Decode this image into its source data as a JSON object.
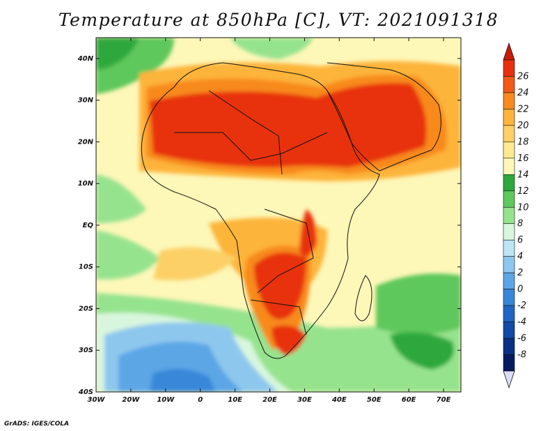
{
  "title": "Temperature at 850hPa [C], VT: 2021091318",
  "credit": "GrADS: IGES/COLA",
  "map": {
    "lat_ticks": [
      "40N",
      "30N",
      "20N",
      "10N",
      "EQ",
      "10S",
      "20S",
      "30S",
      "40S"
    ],
    "lon_ticks": [
      "30W",
      "20W",
      "10W",
      "0",
      "10E",
      "20E",
      "30E",
      "40E",
      "50E",
      "60E",
      "70E"
    ],
    "lat_range": [
      -40,
      45
    ],
    "lon_range": [
      -30,
      75
    ],
    "field": "temperature at 850hPa",
    "unit": "C"
  },
  "colorbar": {
    "labels": [
      "26",
      "24",
      "22",
      "20",
      "18",
      "16",
      "14",
      "12",
      "10",
      "8",
      "6",
      "4",
      "2",
      "0",
      "-2",
      "-4",
      "-6",
      "-8"
    ],
    "colors": [
      "#e83010",
      "#f25a18",
      "#f88a1e",
      "#fdb43a",
      "#fcd066",
      "#fde990",
      "#fdf7b8",
      "#2ea83c",
      "#5ec85c",
      "#96e38e",
      "#d8f6de",
      "#bce6f4",
      "#8ec7ee",
      "#5ba6e6",
      "#3787d8",
      "#1f66c4",
      "#134aa8",
      "#0a2f84",
      "#061a60"
    ],
    "max_arrow_color": "#c81c08",
    "min_arrow_color": "#dcdcf6"
  }
}
